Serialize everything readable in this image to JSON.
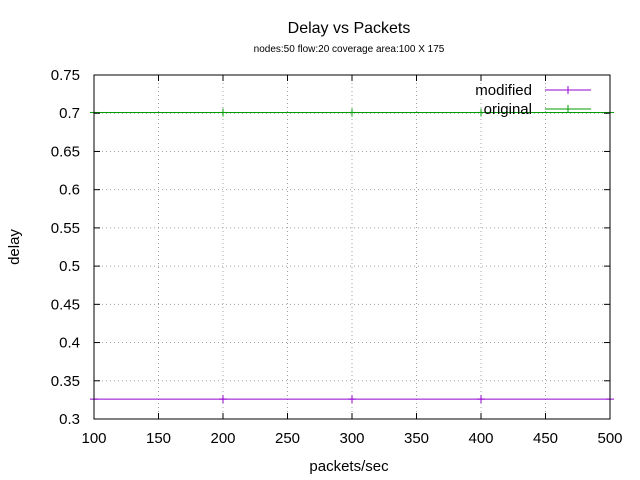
{
  "chart_data": {
    "type": "line",
    "title": "Delay vs Packets",
    "subtitle": "nodes:50  flow:20  coverage area:100 X 175",
    "xlabel": "packets/sec",
    "ylabel": "delay",
    "xlim": [
      100,
      500
    ],
    "ylim": [
      0.3,
      0.75
    ],
    "xticks": [
      "100",
      "150",
      "200",
      "250",
      "300",
      "350",
      "400",
      "450",
      "500"
    ],
    "yticks": [
      "0.3",
      "0.35",
      "0.4",
      "0.45",
      "0.5",
      "0.55",
      "0.6",
      "0.65",
      "0.7",
      "0.75"
    ],
    "grid": true,
    "legend_position": "top-right",
    "series": [
      {
        "name": "modified",
        "color": "#9400d3",
        "x": [
          100,
          200,
          300,
          400,
          500
        ],
        "y": [
          0.326,
          0.326,
          0.326,
          0.326,
          0.326
        ]
      },
      {
        "name": "original",
        "color": "#009e00",
        "x": [
          100,
          200,
          300,
          400,
          500
        ],
        "y": [
          0.701,
          0.701,
          0.701,
          0.701,
          0.701
        ]
      }
    ]
  }
}
